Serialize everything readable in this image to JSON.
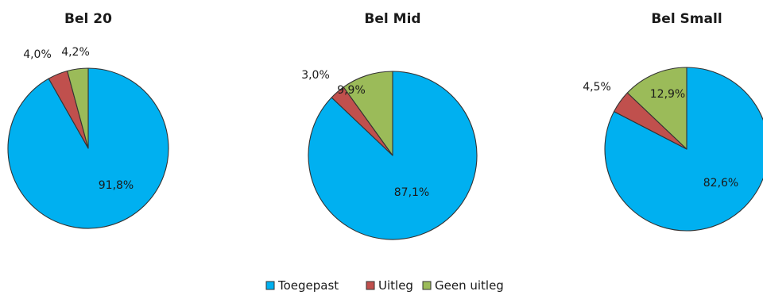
{
  "chart_data": {
    "type": "pie",
    "series_labels": [
      "Toegepast",
      "Uitleg",
      "Geen uitleg"
    ],
    "colors": [
      "#00b0f0",
      "#c0504d",
      "#9bbb59"
    ],
    "legend_position": "bottom",
    "charts": [
      {
        "title": "Bel 20",
        "values": [
          91.8,
          4.0,
          4.2
        ],
        "labels": [
          "91,8%",
          "4,0%",
          "4,2%"
        ]
      },
      {
        "title": "Bel Mid",
        "values": [
          87.1,
          3.0,
          9.9
        ],
        "labels": [
          "87,1%",
          "3,0%",
          "9,9%"
        ]
      },
      {
        "title": "Bel Small",
        "values": [
          82.6,
          4.5,
          12.9
        ],
        "labels": [
          "82,6%",
          "4,5%",
          "12,9%"
        ]
      }
    ]
  }
}
